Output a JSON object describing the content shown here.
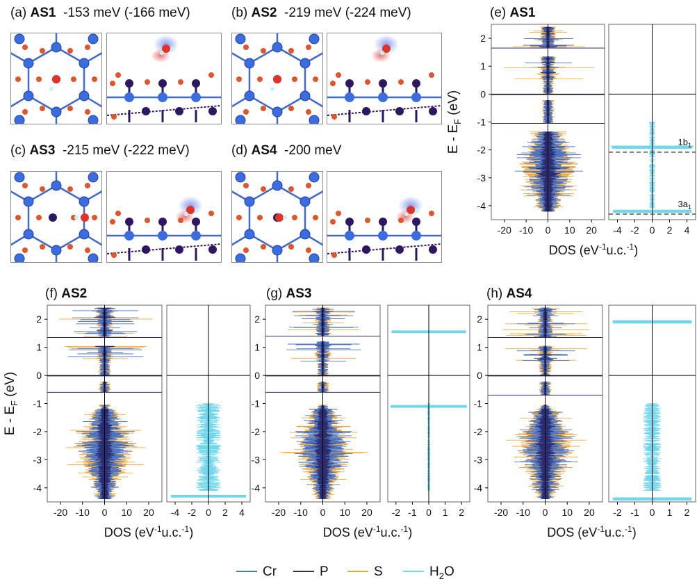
{
  "colors": {
    "Cr": "#4a73c4",
    "P": "#2b2b6e",
    "S": "#efa93c",
    "H2O": "#6fd6ec",
    "axis": "#000000",
    "dashed": "#555555"
  },
  "structure_panels": [
    {
      "letter": "(a)",
      "name": "AS1",
      "energy": "-153 meV",
      "energy_alt": "(-166 meV)"
    },
    {
      "letter": "(b)",
      "name": "AS2",
      "energy": "-219 meV",
      "energy_alt": "(-224 meV)"
    },
    {
      "letter": "(c)",
      "name": "AS3",
      "energy": "-215 meV",
      "energy_alt": "(-222 meV)"
    },
    {
      "letter": "(d)",
      "name": "AS4",
      "energy": "-200 meV",
      "energy_alt": ""
    }
  ],
  "legend": [
    {
      "key": "Cr",
      "label": "Cr"
    },
    {
      "key": "P",
      "label": "P"
    },
    {
      "key": "S",
      "label": "S"
    },
    {
      "key": "H2O",
      "label": "H",
      "sub": "2",
      "tail": "O"
    }
  ],
  "chart_data": [
    {
      "panel": "(e)",
      "name": "AS1",
      "type": "line",
      "ylabel": "E - E",
      "ylabel_sub": "F",
      "ylabel_unit": " (eV)",
      "xlabel": "DOS (eV",
      "xlabel_sup": "-1",
      "xlabel_mid": "u.c.",
      "xlabel_sup2": "-1",
      "xlabel_end": ")",
      "ylim": [
        -4.5,
        2.5
      ],
      "yticks": [
        2,
        1,
        0,
        -1,
        -2,
        -3,
        -4
      ],
      "left": {
        "xlim": [
          -26,
          26
        ],
        "xticks": [
          -20,
          -10,
          0,
          10,
          20
        ],
        "gaps": [
          [
            1.65,
            1.35
          ],
          [
            -0.02,
            -0.22
          ],
          [
            -1.05,
            -1.35
          ]
        ],
        "edges": [
          -4.2,
          2.4
        ]
      },
      "right": {
        "xlim": [
          -5,
          5
        ],
        "xticks": [
          -4,
          -2,
          0,
          2,
          4
        ],
        "peaks": [
          -1.9,
          -4.2
        ]
      },
      "fermi": 0,
      "levels": [
        {
          "e": -2.08,
          "label": "1b",
          "sub": "1"
        },
        {
          "e": -4.3,
          "label": "3a",
          "sub": "1"
        }
      ]
    },
    {
      "panel": "(f)",
      "name": "AS2",
      "type": "line",
      "ylabel": "E - E",
      "ylabel_sub": "F",
      "ylabel_unit": " (eV)",
      "xlabel": "DOS (eV",
      "xlabel_sup": "-1",
      "xlabel_mid": "u.c.",
      "xlabel_sup2": "-1",
      "xlabel_end": ")",
      "ylim": [
        -4.5,
        2.5
      ],
      "yticks": [
        2,
        1,
        0,
        -1,
        -2,
        -3,
        -4
      ],
      "left": {
        "xlim": [
          -26,
          26
        ],
        "xticks": [
          -20,
          -10,
          0,
          10,
          20
        ],
        "gaps": [
          [
            1.35,
            1.05
          ],
          [
            -0.02,
            -0.22
          ],
          [
            -0.6,
            -1.05
          ]
        ],
        "edges": [
          -4.4,
          2.4
        ]
      },
      "right": {
        "xlim": [
          -5,
          5
        ],
        "xticks": [
          -4,
          -2,
          0,
          2,
          4
        ],
        "peaks": [
          -4.3
        ]
      },
      "fermi": 0,
      "levels": []
    },
    {
      "panel": "(g)",
      "name": "AS3",
      "type": "line",
      "ylabel": "",
      "ylabel_sub": "",
      "ylabel_unit": "",
      "xlabel": "DOS (eV",
      "xlabel_sup": "-1",
      "xlabel_mid": "u.c.",
      "xlabel_sup2": "-1",
      "xlabel_end": ")",
      "ylim": [
        -4.5,
        2.5
      ],
      "yticks": [
        2,
        1,
        0,
        -1,
        -2,
        -3,
        -4
      ],
      "left": {
        "xlim": [
          -26,
          26
        ],
        "xticks": [
          -20,
          -10,
          0,
          10,
          20
        ],
        "gaps": [
          [
            1.4,
            1.2
          ],
          [
            -0.02,
            -0.22
          ],
          [
            -0.6,
            -1.05
          ]
        ],
        "edges": [
          -4.4,
          2.4
        ]
      },
      "right": {
        "xlim": [
          -2.5,
          2.5
        ],
        "xticks": [
          -2,
          -1,
          0,
          1,
          2
        ],
        "peaks": [
          1.55,
          -1.1
        ]
      },
      "fermi": 0,
      "levels": []
    },
    {
      "panel": "(h)",
      "name": "AS4",
      "type": "line",
      "ylabel": "",
      "ylabel_sub": "",
      "ylabel_unit": "",
      "xlabel": "DOS (eV",
      "xlabel_sup": "-1",
      "xlabel_mid": "u.c.",
      "xlabel_sup2": "-1",
      "xlabel_end": ")",
      "ylim": [
        -4.5,
        2.5
      ],
      "yticks": [
        2,
        1,
        0,
        -1,
        -2,
        -3,
        -4
      ],
      "left": {
        "xlim": [
          -26,
          26
        ],
        "xticks": [
          -20,
          -10,
          0,
          10,
          20
        ],
        "gaps": [
          [
            1.35,
            1.05
          ],
          [
            -0.02,
            -0.22
          ],
          [
            -0.7,
            -1.05
          ]
        ],
        "edges": [
          -4.4,
          2.4
        ]
      },
      "right": {
        "xlim": [
          -2.5,
          2.5
        ],
        "xticks": [
          -2,
          -1,
          0,
          1,
          2
        ],
        "peaks": [
          1.9,
          -4.4
        ]
      },
      "fermi": 0,
      "levels": []
    }
  ]
}
